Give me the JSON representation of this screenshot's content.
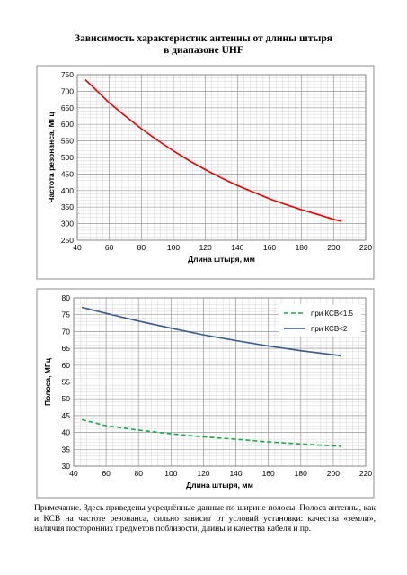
{
  "title_line1": "Зависимость характеристик антенны от длины штыря",
  "title_line2": "в диапазоне UHF",
  "note": "Примечание. Здесь приведены усреднённые данные по ширине полосы. Полоса антенны, как и КСВ на частоте резонанса, сильно зависит от условий установки: качества «земли», наличия посторонних предметов поблизости, длины и качества кабеля и пр.",
  "chart_data": [
    {
      "type": "line",
      "title": "",
      "xlabel": "Длина штыря, мм",
      "ylabel": "Частота резонанса, МГц",
      "xlim": [
        40,
        220
      ],
      "ylim": [
        250,
        750
      ],
      "xticks": [
        40,
        60,
        80,
        100,
        120,
        140,
        160,
        180,
        200,
        220
      ],
      "yticks": [
        250,
        300,
        350,
        400,
        450,
        500,
        550,
        600,
        650,
        700,
        750
      ],
      "grid": true,
      "series": [
        {
          "color": "#e60000",
          "dash": "solid",
          "x": [
            45,
            50,
            60,
            70,
            80,
            90,
            100,
            110,
            120,
            130,
            140,
            150,
            160,
            170,
            180,
            190,
            200,
            205
          ],
          "y": [
            735,
            712,
            665,
            625,
            587,
            552,
            520,
            490,
            463,
            438,
            415,
            395,
            375,
            358,
            342,
            328,
            313,
            307
          ]
        }
      ]
    },
    {
      "type": "line",
      "title": "",
      "xlabel": "Длина штыря, мм",
      "ylabel": "Полоса, МГц",
      "xlim": [
        40,
        220
      ],
      "ylim": [
        30,
        80
      ],
      "xticks": [
        40,
        60,
        80,
        100,
        120,
        140,
        160,
        180,
        200,
        220
      ],
      "yticks": [
        30,
        35,
        40,
        45,
        50,
        55,
        60,
        65,
        70,
        75,
        80
      ],
      "grid": true,
      "legend": "top-right",
      "series": [
        {
          "name": "при КСВ<1.5",
          "color": "#1aa84c",
          "dash": "dashed",
          "x": [
            45,
            60,
            80,
            100,
            120,
            140,
            160,
            180,
            205
          ],
          "y": [
            43.8,
            42.0,
            40.7,
            39.6,
            38.7,
            38.0,
            37.2,
            36.6,
            35.9
          ]
        },
        {
          "name": "при КСВ<2",
          "color": "#3a5a8c",
          "dash": "solid",
          "x": [
            45,
            60,
            80,
            100,
            120,
            140,
            160,
            180,
            205
          ],
          "y": [
            77.2,
            75.4,
            73.1,
            71.0,
            69.0,
            67.3,
            65.7,
            64.3,
            62.8
          ]
        }
      ]
    }
  ]
}
